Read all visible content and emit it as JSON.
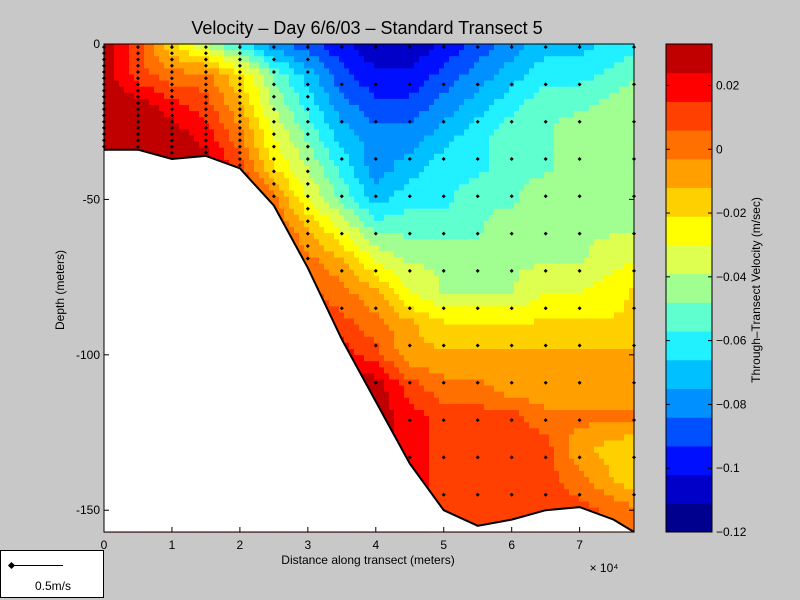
{
  "chart_data": {
    "type": "contour",
    "title": "Velocity – Day 6/6/03 – Standard Transect 5",
    "xlabel": "Distance along transect (meters)",
    "ylabel": "Depth (meters)",
    "x_exponent": "× 10⁴",
    "x_multiplier": 10000,
    "xlim": [
      0,
      78000
    ],
    "ylim": [
      -157,
      0
    ],
    "x_ticks": [
      0,
      1,
      2,
      3,
      4,
      5,
      6,
      7
    ],
    "y_ticks": [
      0,
      -50,
      -100,
      -150
    ],
    "x_tick_labels": [
      "0",
      "1",
      "2",
      "3",
      "4",
      "5",
      "6",
      "7"
    ],
    "y_tick_labels": [
      "0",
      "-50",
      "-100",
      "-150"
    ],
    "colorbar": {
      "label": "Through–Transect Velocity (m/sec)",
      "min": -0.12,
      "max": 0.033,
      "ticks": [
        0.02,
        0,
        -0.02,
        -0.04,
        -0.06,
        -0.08,
        -0.1,
        -0.12
      ],
      "tick_labels": [
        "0.02",
        "0",
        "−0.02",
        "−0.04",
        "−0.06",
        "−0.08",
        "−0.1",
        "−0.12"
      ],
      "colors": [
        "#00008f",
        "#0000c8",
        "#0010ff",
        "#0050ff",
        "#0090ff",
        "#00c0ff",
        "#20f0ff",
        "#60ffd0",
        "#a0ff90",
        "#dfff50",
        "#ffff00",
        "#ffd000",
        "#ffa000",
        "#ff7000",
        "#ff4000",
        "#ff0000",
        "#c00000"
      ]
    },
    "bottom_profile": [
      {
        "x": 0,
        "depth": -34
      },
      {
        "x": 5000,
        "depth": -34
      },
      {
        "x": 10000,
        "depth": -37
      },
      {
        "x": 15000,
        "depth": -36
      },
      {
        "x": 20000,
        "depth": -40
      },
      {
        "x": 25000,
        "depth": -52
      },
      {
        "x": 30000,
        "depth": -72
      },
      {
        "x": 35000,
        "depth": -95
      },
      {
        "x": 40000,
        "depth": -115
      },
      {
        "x": 45000,
        "depth": -135
      },
      {
        "x": 50000,
        "depth": -150
      },
      {
        "x": 55000,
        "depth": -155
      },
      {
        "x": 60000,
        "depth": -153
      },
      {
        "x": 65000,
        "depth": -150
      },
      {
        "x": 70000,
        "depth": -149
      },
      {
        "x": 75000,
        "depth": -153
      },
      {
        "x": 78000,
        "depth": -157
      }
    ],
    "stations_x": [
      0,
      5000,
      10000,
      15000,
      20000,
      25000,
      30000,
      35000,
      40000,
      45000,
      50000,
      55000,
      60000,
      65000,
      70000,
      78000
    ],
    "velocity_grid": {
      "x": [
        0,
        5000,
        10000,
        15000,
        20000,
        25000,
        30000,
        35000,
        40000,
        45000,
        50000,
        55000,
        60000,
        65000,
        70000,
        78000
      ],
      "depth": [
        0,
        -10,
        -20,
        -30,
        -40,
        -50,
        -60,
        -70,
        -80,
        -90,
        -100,
        -110,
        -120,
        -130,
        -140,
        -150,
        -157
      ],
      "values": [
        [
          0.03,
          0.01,
          -0.02,
          -0.04,
          -0.06,
          -0.08,
          -0.09,
          -0.1,
          -0.11,
          -0.11,
          -0.1,
          -0.09,
          -0.08,
          -0.07,
          -0.07,
          -0.06
        ],
        [
          0.03,
          0.01,
          0.0,
          0.0,
          -0.02,
          -0.05,
          -0.07,
          -0.09,
          -0.1,
          -0.1,
          -0.09,
          -0.08,
          -0.07,
          -0.06,
          -0.06,
          -0.05
        ],
        [
          0.03,
          0.03,
          0.02,
          0.01,
          -0.01,
          -0.04,
          -0.06,
          -0.08,
          -0.09,
          -0.09,
          -0.08,
          -0.07,
          -0.06,
          -0.05,
          -0.05,
          -0.04
        ],
        [
          0.03,
          0.03,
          0.03,
          0.02,
          0.0,
          -0.03,
          -0.05,
          -0.07,
          -0.08,
          -0.08,
          -0.07,
          -0.06,
          -0.05,
          -0.05,
          -0.04,
          -0.04
        ],
        [
          0.03,
          0.03,
          0.03,
          0.03,
          0.01,
          -0.02,
          -0.04,
          -0.06,
          -0.08,
          -0.07,
          -0.06,
          -0.06,
          -0.05,
          -0.05,
          -0.04,
          -0.04
        ],
        [
          0.03,
          0.03,
          0.03,
          0.03,
          0.02,
          0.0,
          -0.03,
          -0.05,
          -0.07,
          -0.06,
          -0.06,
          -0.05,
          -0.05,
          -0.04,
          -0.04,
          -0.04
        ],
        [
          0.03,
          0.03,
          0.03,
          0.03,
          0.02,
          0.01,
          -0.01,
          -0.03,
          -0.05,
          -0.05,
          -0.05,
          -0.05,
          -0.04,
          -0.04,
          -0.04,
          -0.04
        ],
        [
          0.03,
          0.03,
          0.03,
          0.03,
          0.02,
          0.01,
          0.0,
          -0.01,
          -0.03,
          -0.04,
          -0.04,
          -0.04,
          -0.04,
          -0.04,
          -0.04,
          -0.03
        ],
        [
          0.03,
          0.03,
          0.03,
          0.03,
          0.02,
          0.01,
          0.01,
          0.0,
          -0.01,
          -0.03,
          -0.04,
          -0.04,
          -0.04,
          -0.03,
          -0.03,
          -0.02
        ],
        [
          0.03,
          0.03,
          0.03,
          0.03,
          0.02,
          0.02,
          0.01,
          0.01,
          0.0,
          -0.01,
          -0.02,
          -0.02,
          -0.02,
          -0.02,
          -0.02,
          -0.02
        ],
        [
          0.03,
          0.03,
          0.03,
          0.03,
          0.03,
          0.02,
          0.02,
          0.02,
          0.01,
          -0.01,
          -0.01,
          -0.01,
          -0.01,
          -0.01,
          -0.01,
          -0.01
        ],
        [
          0.03,
          0.03,
          0.03,
          0.03,
          0.03,
          0.03,
          0.03,
          0.03,
          0.03,
          0.01,
          0.0,
          0.0,
          -0.01,
          -0.01,
          -0.01,
          -0.01
        ],
        [
          0.03,
          0.03,
          0.03,
          0.03,
          0.03,
          0.03,
          0.03,
          0.03,
          0.03,
          0.02,
          0.01,
          0.01,
          0.01,
          0.0,
          0.0,
          0.0
        ],
        [
          0.03,
          0.03,
          0.03,
          0.03,
          0.03,
          0.03,
          0.03,
          0.03,
          0.03,
          0.02,
          0.01,
          0.01,
          0.01,
          0.01,
          -0.01,
          -0.02
        ],
        [
          0.03,
          0.03,
          0.03,
          0.03,
          0.03,
          0.03,
          0.03,
          0.03,
          0.03,
          0.02,
          0.01,
          0.01,
          0.01,
          0.01,
          0.0,
          -0.02
        ],
        [
          0.03,
          0.03,
          0.03,
          0.03,
          0.03,
          0.03,
          0.03,
          0.03,
          0.03,
          0.02,
          0.01,
          0.01,
          0.01,
          0.01,
          0.01,
          0.0
        ],
        [
          0.03,
          0.03,
          0.03,
          0.03,
          0.03,
          0.03,
          0.03,
          0.03,
          0.03,
          0.02,
          0.01,
          0.01,
          0.01,
          0.01,
          0.01,
          0.0
        ]
      ]
    },
    "measurement_depth_spacing": 4,
    "scale_key": {
      "label": "0.5m/s",
      "value_mps": 0.5
    }
  }
}
